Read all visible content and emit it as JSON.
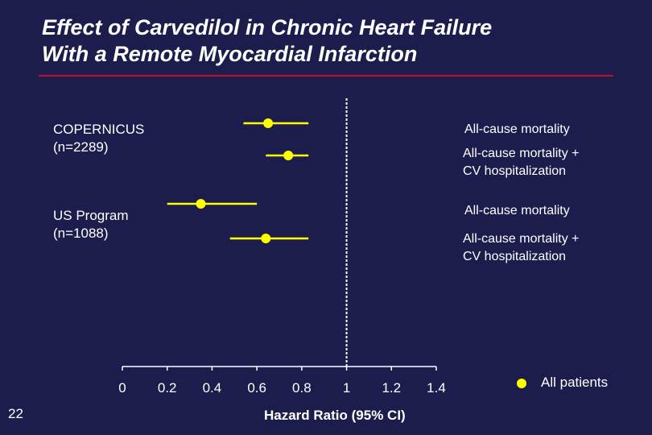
{
  "title_line1": "Effect of Carvedilol in Chronic Heart Failure",
  "title_line2": "With a Remote Myocardial Infarction",
  "studies": [
    {
      "name": "COPERNICUS",
      "n": "(n=2289)"
    },
    {
      "name": "US Program",
      "n": "(n=1088)"
    }
  ],
  "outcomes": [
    {
      "line1": "All-cause mortality",
      "line2": ""
    },
    {
      "line1": "All-cause mortality +",
      "line2": "CV hospitalization"
    },
    {
      "line1": "All-cause mortality",
      "line2": ""
    },
    {
      "line1": "All-cause mortality +",
      "line2": "CV hospitalization"
    }
  ],
  "legend_label": "All patients",
  "slide_number": "22",
  "colors": {
    "background": "#1c1d4d",
    "marker": "#ffff00",
    "rule": "#c0102a",
    "text": "#ffffff"
  },
  "chart_data": {
    "type": "scatter",
    "subtype": "forest-plot",
    "title": "Effect of Carvedilol in Chronic Heart Failure With a Remote Myocardial Infarction",
    "xlabel": "Hazard Ratio (95% CI)",
    "ylabel": "",
    "xlim": [
      0,
      1.4
    ],
    "xticks": [
      "0",
      "0.2",
      "0.4",
      "0.6",
      "0.8",
      "1",
      "1.2",
      "1.4"
    ],
    "reference_line": 1,
    "legend": [
      "All patients"
    ],
    "series": [
      {
        "study": "COPERNICUS (n=2289)",
        "outcome": "All-cause mortality",
        "hr": 0.65,
        "ci_low": 0.54,
        "ci_high": 0.83
      },
      {
        "study": "COPERNICUS (n=2289)",
        "outcome": "All-cause mortality + CV hospitalization",
        "hr": 0.74,
        "ci_low": 0.64,
        "ci_high": 0.83
      },
      {
        "study": "US Program (n=1088)",
        "outcome": "All-cause mortality",
        "hr": 0.35,
        "ci_low": 0.2,
        "ci_high": 0.6
      },
      {
        "study": "US Program (n=1088)",
        "outcome": "All-cause mortality + CV hospitalization",
        "hr": 0.64,
        "ci_low": 0.48,
        "ci_high": 0.83
      }
    ]
  }
}
